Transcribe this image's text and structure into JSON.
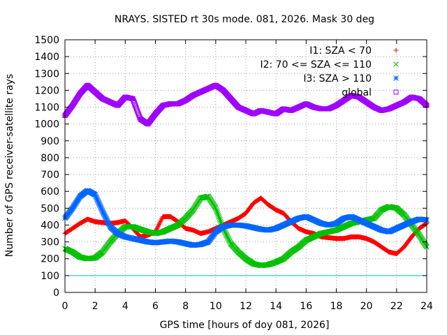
{
  "chart_data": {
    "type": "scatter",
    "title": "NRAYS. SISTED rt 30s mode. 081, 2026. Mask 30 deg",
    "xlabel": "GPS time [hours of doy 081, 2026]",
    "ylabel": "Number of GPS receiver-satellite rays",
    "xlim": [
      0,
      24
    ],
    "ylim": [
      0,
      1500
    ],
    "xticks": [
      0,
      2,
      4,
      6,
      8,
      10,
      12,
      14,
      16,
      18,
      20,
      22,
      24
    ],
    "yticks": [
      0,
      100,
      200,
      300,
      400,
      500,
      600,
      700,
      800,
      900,
      1000,
      1100,
      1200,
      1300,
      1400,
      1500
    ],
    "grid": true,
    "legend_position": "top-right",
    "reference_line": {
      "y": 100,
      "color": "#00c0c0"
    },
    "series": [
      {
        "name": "I1: SZA < 70",
        "marker": "+",
        "color": "#ff0000",
        "x": [
          0,
          0.5,
          1,
          1.5,
          2,
          2.5,
          3,
          3.5,
          4,
          4.5,
          5,
          5.5,
          6,
          6.5,
          7,
          7.5,
          8,
          8.5,
          9,
          9.5,
          10,
          10.5,
          11,
          11.5,
          12,
          12.5,
          13,
          13.5,
          14,
          14.5,
          15,
          15.5,
          16,
          16.5,
          17,
          17.5,
          18,
          18.5,
          19,
          19.5,
          20,
          20.5,
          21,
          21.5,
          22,
          22.5,
          23,
          23.5,
          24
        ],
        "y": [
          350,
          380,
          410,
          435,
          420,
          415,
          410,
          415,
          425,
          380,
          330,
          340,
          360,
          450,
          450,
          420,
          380,
          370,
          350,
          360,
          380,
          400,
          420,
          440,
          470,
          530,
          560,
          520,
          490,
          470,
          420,
          380,
          360,
          350,
          330,
          325,
          320,
          320,
          330,
          330,
          320,
          300,
          270,
          240,
          230,
          270,
          330,
          380,
          410
        ]
      },
      {
        "name": "I2: 70 <= SZA <= 110",
        "marker": "x",
        "color": "#00c000",
        "x": [
          0,
          0.5,
          1,
          1.5,
          2,
          2.5,
          3,
          3.5,
          4,
          4.5,
          5,
          5.5,
          6,
          6.5,
          7,
          7.5,
          8,
          8.5,
          9,
          9.5,
          10,
          10.5,
          11,
          11.5,
          12,
          12.5,
          13,
          13.5,
          14,
          14.5,
          15,
          15.5,
          16,
          16.5,
          17,
          17.5,
          18,
          18.5,
          19,
          19.5,
          20,
          20.5,
          21,
          21.5,
          22,
          22.5,
          23,
          23.5,
          24
        ],
        "y": [
          260,
          240,
          210,
          200,
          205,
          240,
          300,
          350,
          390,
          390,
          375,
          360,
          350,
          360,
          380,
          400,
          440,
          490,
          560,
          570,
          500,
          380,
          290,
          240,
          200,
          170,
          160,
          165,
          180,
          200,
          240,
          270,
          310,
          330,
          350,
          360,
          370,
          390,
          410,
          420,
          430,
          440,
          490,
          510,
          500,
          460,
          400,
          340,
          270
        ]
      },
      {
        "name": "I3: SZA > 110",
        "marker": "*",
        "color": "#0066ff",
        "x": [
          0,
          0.5,
          1,
          1.5,
          2,
          2.5,
          3,
          3.5,
          4,
          4.5,
          5,
          5.5,
          6,
          6.5,
          7,
          7.5,
          8,
          8.5,
          9,
          9.5,
          10,
          10.5,
          11,
          11.5,
          12,
          12.5,
          13,
          13.5,
          14,
          14.5,
          15,
          15.5,
          16,
          16.5,
          17,
          17.5,
          18,
          18.5,
          19,
          19.5,
          20,
          20.5,
          21,
          21.5,
          22,
          22.5,
          23,
          23.5,
          24
        ],
        "y": [
          440,
          500,
          570,
          605,
          580,
          480,
          390,
          350,
          330,
          320,
          310,
          300,
          295,
          300,
          305,
          300,
          290,
          280,
          285,
          300,
          360,
          390,
          400,
          400,
          395,
          385,
          375,
          370,
          380,
          400,
          420,
          440,
          450,
          430,
          410,
          400,
          410,
          440,
          450,
          430,
          410,
          390,
          370,
          360,
          380,
          400,
          420,
          435,
          430
        ]
      },
      {
        "name": "global",
        "marker": "square",
        "color": "#a000ff",
        "x": [
          0,
          0.5,
          1,
          1.5,
          2,
          2.5,
          3,
          3.5,
          4,
          4.5,
          5,
          5.5,
          6,
          6.5,
          7,
          7.5,
          8,
          8.5,
          9,
          9.5,
          10,
          10.5,
          11,
          11.5,
          12,
          12.5,
          13,
          13.5,
          14,
          14.5,
          15,
          15.5,
          16,
          16.5,
          17,
          17.5,
          18,
          18.5,
          19,
          19.5,
          20,
          20.5,
          21,
          21.5,
          22,
          22.5,
          23,
          23.5,
          24
        ],
        "y": [
          1050,
          1110,
          1180,
          1230,
          1190,
          1150,
          1130,
          1110,
          1160,
          1150,
          1030,
          1000,
          1060,
          1110,
          1120,
          1120,
          1140,
          1170,
          1190,
          1210,
          1230,
          1200,
          1150,
          1100,
          1080,
          1060,
          1080,
          1070,
          1060,
          1090,
          1080,
          1100,
          1120,
          1100,
          1090,
          1090,
          1110,
          1140,
          1170,
          1160,
          1130,
          1100,
          1080,
          1090,
          1110,
          1130,
          1160,
          1150,
          1110
        ]
      }
    ]
  }
}
